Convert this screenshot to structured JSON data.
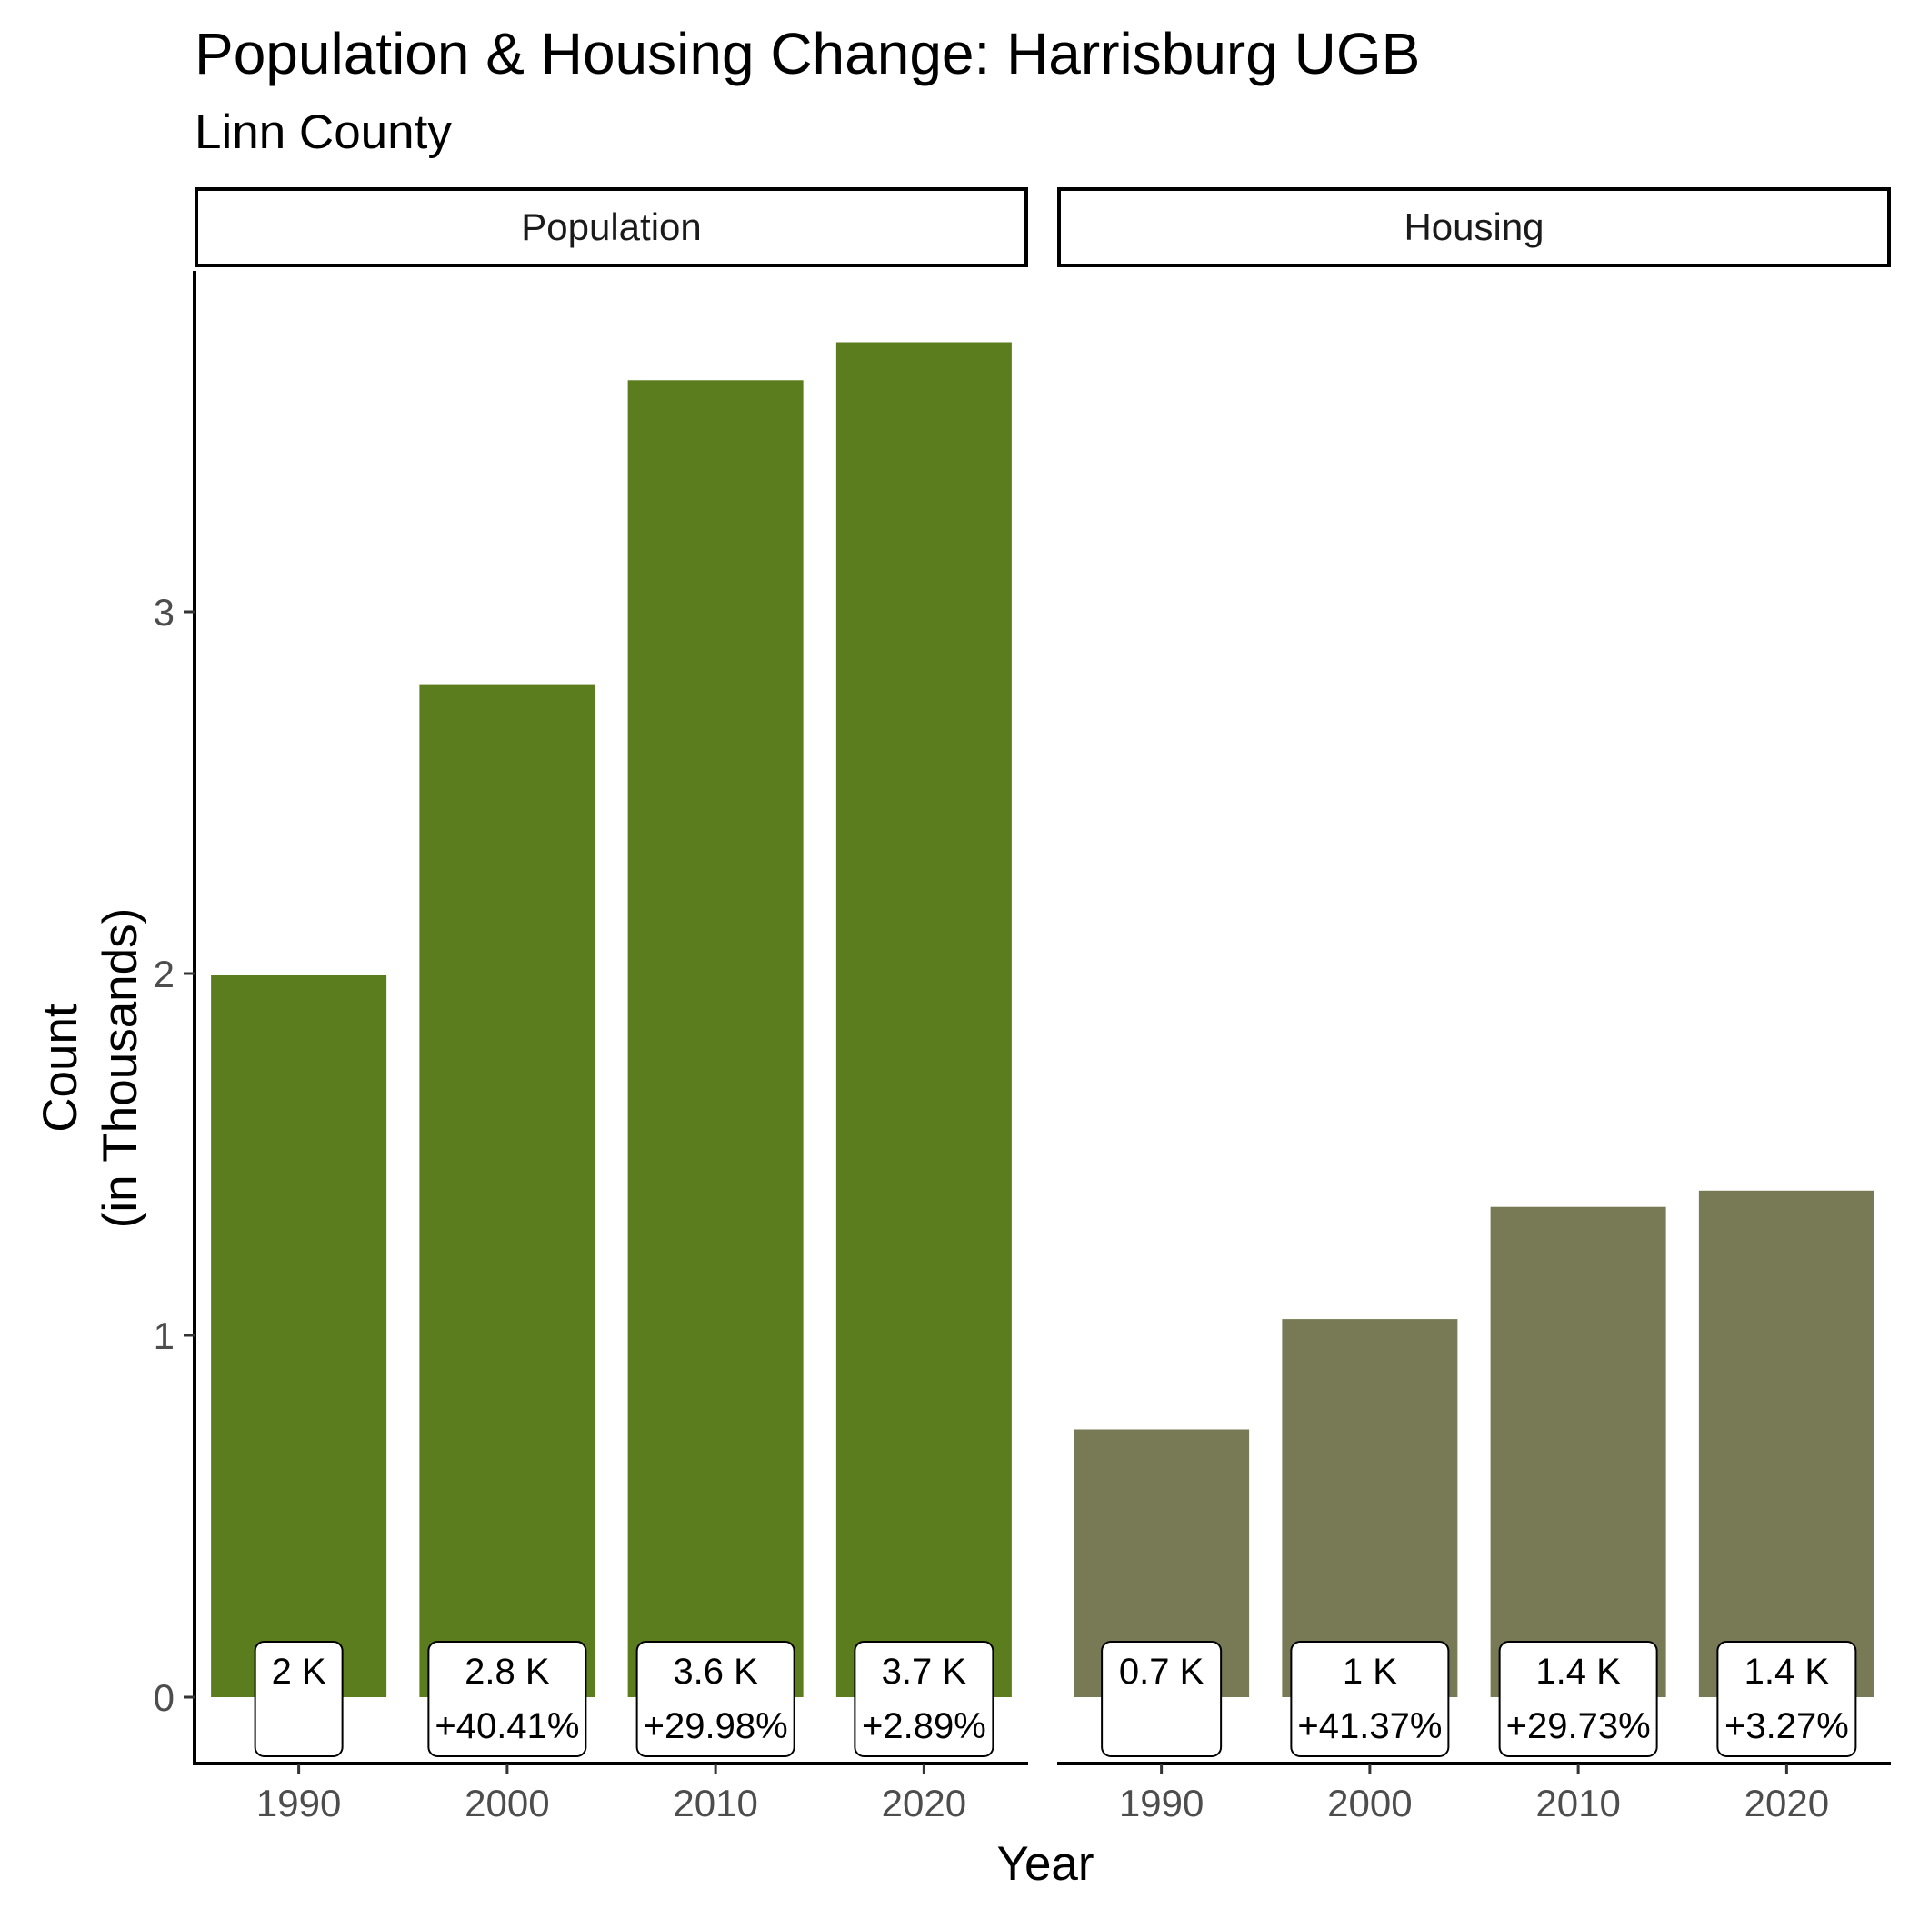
{
  "chart_data": {
    "type": "bar",
    "title": "Population & Housing Change: Harrisburg UGB",
    "subtitle": "Linn County",
    "xlabel": "Year",
    "ylabel": [
      "Count",
      "(in Thousands)"
    ],
    "ylim": [
      0,
      3.75
    ],
    "yticks": [
      "0",
      "1",
      "2",
      "3"
    ],
    "grid": false,
    "legend": "none",
    "categories": [
      "1990",
      "2000",
      "2010",
      "2020"
    ],
    "panels": [
      {
        "name": "Population",
        "color": "#5b7d1e",
        "values": [
          1.995,
          2.8,
          3.64,
          3.745
        ],
        "labels": [
          [
            "2 K",
            ""
          ],
          [
            "2.8 K",
            "+40.41%"
          ],
          [
            "3.6 K",
            "+29.98%"
          ],
          [
            "3.7 K",
            "+2.89%"
          ]
        ]
      },
      {
        "name": "Housing",
        "color": "#787a56",
        "values": [
          0.74,
          1.045,
          1.355,
          1.4
        ],
        "labels": [
          [
            "0.7 K",
            ""
          ],
          [
            "1 K",
            "+41.37%"
          ],
          [
            "1.4 K",
            "+29.73%"
          ],
          [
            "1.4 K",
            "+3.27%"
          ]
        ]
      }
    ]
  }
}
